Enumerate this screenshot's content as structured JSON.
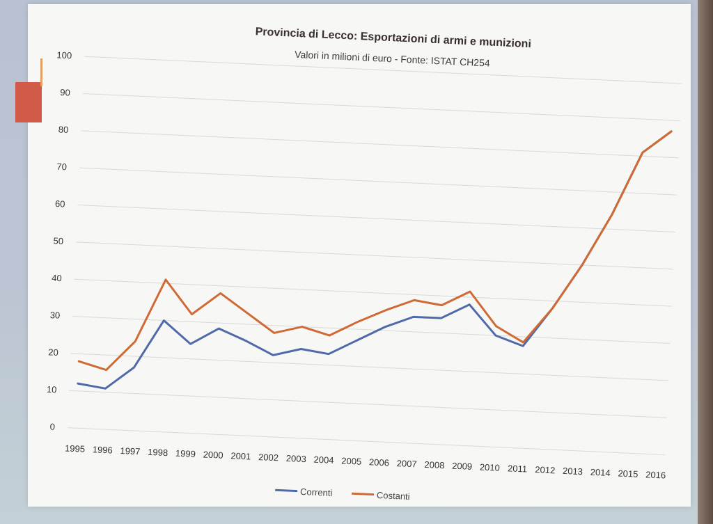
{
  "chart_data": {
    "type": "line",
    "title": "Provincia di Lecco: Esportazioni di armi e munizioni",
    "subtitle": "Valori in milioni di euro - Fonte: ISTAT CH254",
    "xlabel": "",
    "ylabel": "",
    "x": [
      "1995",
      "1996",
      "1997",
      "1998",
      "1999",
      "2000",
      "2001",
      "2002",
      "2003",
      "2004",
      "2005",
      "2006",
      "2007",
      "2008",
      "2009",
      "2010",
      "2011",
      "2012",
      "2013",
      "2014",
      "2015",
      "2016"
    ],
    "yticks": [
      0,
      10,
      20,
      30,
      40,
      50,
      60,
      70,
      80,
      90,
      100
    ],
    "ylim": [
      0,
      100
    ],
    "grid": true,
    "legend_position": "bottom",
    "series": [
      {
        "name": "Correnti",
        "color": "#4f6aa8",
        "values": [
          12,
          11,
          17,
          30,
          24,
          28.5,
          25.5,
          22,
          24,
          23,
          27,
          31,
          34,
          34,
          38,
          30,
          27.5,
          38,
          50,
          64,
          81,
          87
        ]
      },
      {
        "name": "Costanti",
        "color": "#cf6a34",
        "values": [
          18,
          16,
          24,
          41,
          32,
          38,
          33,
          28,
          30,
          28,
          32,
          35.5,
          38.5,
          37.5,
          41.5,
          32.5,
          28.5,
          38,
          50,
          64,
          81,
          87
        ]
      }
    ]
  },
  "colors": {
    "slide_background": "#f7f7f6",
    "gridline": "#d8d8d8",
    "accent": "#d25a48"
  }
}
